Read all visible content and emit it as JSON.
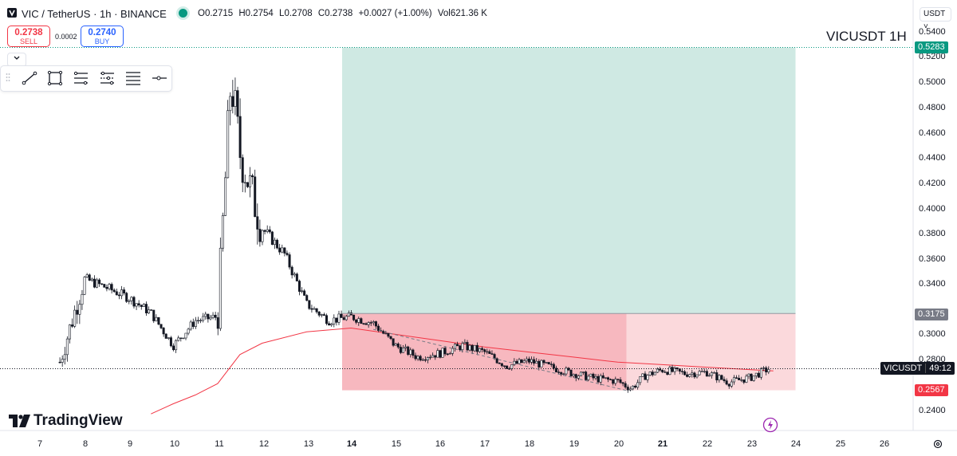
{
  "header": {
    "symbol_title": "VIC / TetherUS · 1h · BINANCE",
    "ohlc": [
      {
        "k": "O",
        "v": "0.2715"
      },
      {
        "k": "H",
        "v": "0.2754"
      },
      {
        "k": "L",
        "v": "0.2708"
      },
      {
        "k": "C",
        "v": "0.2738"
      },
      {
        "k": "",
        "v": "+0.0027 (+1.00%)"
      },
      {
        "k": "Vol",
        "v": "621.36 K"
      }
    ]
  },
  "trade": {
    "sell_price": "0.2738",
    "sell_label": "SELL",
    "spread": "0.0002",
    "buy_price": "0.2740",
    "buy_label": "BUY"
  },
  "toolbar": {
    "tools": [
      "trend-line-icon",
      "rectangle-icon",
      "fib-retracement-icon",
      "pitchfork-icon",
      "parallel-channel-icon",
      "horizontal-ray-icon"
    ]
  },
  "currency": "USDT ˅",
  "watermark": "VICUSDT   1H",
  "price_axis": {
    "labels": [
      "0.5400",
      "0.5200",
      "0.5000",
      "0.4800",
      "0.4600",
      "0.4400",
      "0.4200",
      "0.4000",
      "0.3800",
      "0.3600",
      "0.3400",
      "0.3000",
      "0.2800",
      "0.2400"
    ],
    "target_tag": "0.5283",
    "entry_tag": "0.3175",
    "stop_tag": "0.2567",
    "current_symbol": "VICUSDT",
    "countdown": "49:12"
  },
  "time_axis": [
    {
      "label": "7",
      "bold": false
    },
    {
      "label": "8",
      "bold": false
    },
    {
      "label": "9",
      "bold": false
    },
    {
      "label": "10",
      "bold": false
    },
    {
      "label": "11",
      "bold": false
    },
    {
      "label": "12",
      "bold": false
    },
    {
      "label": "13",
      "bold": false
    },
    {
      "label": "14",
      "bold": true
    },
    {
      "label": "15",
      "bold": false
    },
    {
      "label": "16",
      "bold": false
    },
    {
      "label": "17",
      "bold": false
    },
    {
      "label": "18",
      "bold": false
    },
    {
      "label": "19",
      "bold": false
    },
    {
      "label": "20",
      "bold": false
    },
    {
      "label": "21",
      "bold": true
    },
    {
      "label": "22",
      "bold": false
    },
    {
      "label": "23",
      "bold": false
    },
    {
      "label": "24",
      "bold": false
    },
    {
      "label": "25",
      "bold": false
    },
    {
      "label": "26",
      "bold": false
    }
  ],
  "brand": "TradingView",
  "colors": {
    "profit_zone": "#cfe9e3",
    "loss_zone": "#f7b8bf",
    "loss_zone_light": "#fbd9dc",
    "ma_line": "#f23645",
    "candles": "#131722",
    "target": "#089981",
    "stop": "#f23645"
  },
  "chart_data": {
    "type": "candlestick",
    "symbol": "VICUSDT",
    "interval": "1h",
    "x": [
      "7",
      "7.5",
      "8",
      "8.5",
      "9",
      "9.5",
      "10",
      "10.5",
      "11",
      "11.3",
      "11.5",
      "12",
      "12.5",
      "13",
      "13.5",
      "14",
      "14.5",
      "15",
      "15.5",
      "16",
      "16.5",
      "17",
      "17.5",
      "18",
      "18.5",
      "19",
      "19.5",
      "20",
      "20.3",
      "20.6",
      "21",
      "21.5",
      "22",
      "22.5",
      "23",
      "23.4"
    ],
    "close": [
      0.225,
      0.285,
      0.345,
      0.338,
      0.33,
      0.318,
      0.292,
      0.312,
      0.315,
      0.505,
      0.445,
      0.385,
      0.365,
      0.325,
      0.312,
      0.315,
      0.31,
      0.292,
      0.283,
      0.286,
      0.292,
      0.287,
      0.276,
      0.28,
      0.275,
      0.27,
      0.266,
      0.264,
      0.258,
      0.268,
      0.273,
      0.27,
      0.271,
      0.263,
      0.267,
      0.2738
    ],
    "moving_average": {
      "x": [
        "9.5",
        "10",
        "10.5",
        "11",
        "11.5",
        "12",
        "13",
        "14",
        "15",
        "16",
        "17",
        "18",
        "19",
        "20",
        "21",
        "22",
        "23",
        "23.5"
      ],
      "values": [
        0.238,
        0.246,
        0.253,
        0.262,
        0.285,
        0.294,
        0.303,
        0.306,
        0.301,
        0.296,
        0.291,
        0.287,
        0.283,
        0.279,
        0.277,
        0.275,
        0.273,
        0.272
      ]
    },
    "long_position": {
      "entry": 0.3175,
      "target": 0.5283,
      "stop": 0.2567,
      "start_x": "13.8",
      "end_x": "24"
    },
    "ylim": [
      0.23,
      0.555
    ],
    "y_axis_side": "right",
    "grid": false
  }
}
